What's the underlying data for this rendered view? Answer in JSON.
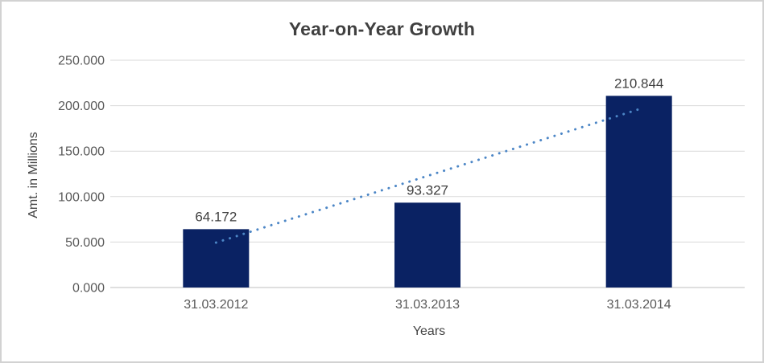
{
  "chart_data": {
    "type": "bar",
    "title": "Year-on-Year Growth",
    "xlabel": "Years",
    "ylabel": "Amt. in Millions",
    "categories": [
      "31.03.2012",
      "31.03.2013",
      "31.03.2014"
    ],
    "values": [
      64.172,
      93.327,
      210.844
    ],
    "data_labels": [
      "64.172",
      "93.327",
      "210.844"
    ],
    "y_ticks": [
      0,
      50,
      100,
      150,
      200,
      250
    ],
    "y_tick_labels": [
      "0.000",
      "50.000",
      "100.000",
      "150.000",
      "200.000",
      "250.000"
    ],
    "ylim": [
      0,
      250
    ],
    "grid": "horizontal",
    "legend": "none",
    "trendline": {
      "type": "linear",
      "style": "dotted",
      "start_value": 49.4,
      "end_value": 196.1
    },
    "colors": {
      "bar": "#0a2263",
      "trendline": "#4c86c6",
      "gridline": "#d9d9d9",
      "axis_line": "#bfbfbf",
      "title_text": "#404040",
      "axis_title_text": "#444444",
      "tick_text": "#595959",
      "data_label_text": "#404040",
      "frame_border": "#d2d2d2",
      "background": "#ffffff"
    }
  }
}
